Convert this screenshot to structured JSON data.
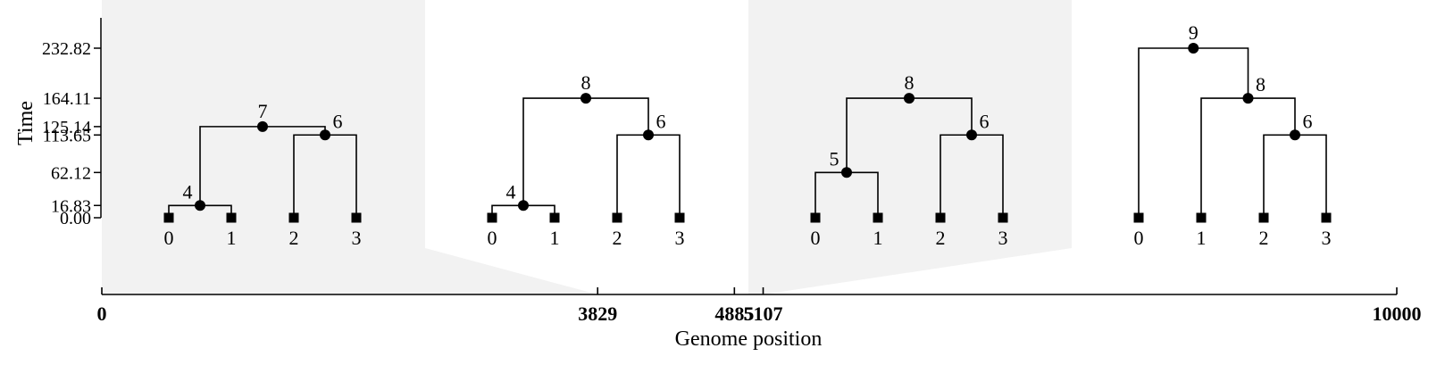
{
  "time_axis": {
    "title": "Time",
    "ticks": [
      {
        "value": 0.0,
        "label": "0.00"
      },
      {
        "value": 16.83,
        "label": "16.83"
      },
      {
        "value": 62.12,
        "label": "62.12"
      },
      {
        "value": 113.65,
        "label": "113.65"
      },
      {
        "value": 125.14,
        "label": "125.14"
      },
      {
        "value": 164.11,
        "label": "164.11"
      },
      {
        "value": 232.82,
        "label": "232.82"
      }
    ]
  },
  "genome_axis": {
    "title": "Genome position",
    "min": 0,
    "max": 10000,
    "breakpoints": [
      {
        "value": 0,
        "label": "0"
      },
      {
        "value": 3829,
        "label": "3829"
      },
      {
        "value": 4885,
        "label": "4885"
      },
      {
        "value": 5107,
        "label": "5107"
      },
      {
        "value": 10000,
        "label": "10000"
      }
    ]
  },
  "trees": [
    {
      "interval": [
        0,
        3829
      ],
      "shaded": true,
      "nodes": [
        {
          "id": "0",
          "time": 0.0,
          "sample": true,
          "label": "0"
        },
        {
          "id": "1",
          "time": 0.0,
          "sample": true,
          "label": "1"
        },
        {
          "id": "2",
          "time": 0.0,
          "sample": true,
          "label": "2"
        },
        {
          "id": "3",
          "time": 0.0,
          "sample": true,
          "label": "3"
        },
        {
          "id": "4",
          "time": 16.83,
          "children": [
            "0",
            "1"
          ],
          "label": "4"
        },
        {
          "id": "6",
          "time": 113.65,
          "children": [
            "2",
            "3"
          ],
          "label": "6"
        },
        {
          "id": "7",
          "time": 125.14,
          "children": [
            "4",
            "6"
          ],
          "label": "7"
        }
      ]
    },
    {
      "interval": [
        3829,
        4885
      ],
      "shaded": false,
      "nodes": [
        {
          "id": "0",
          "time": 0.0,
          "sample": true,
          "label": "0"
        },
        {
          "id": "1",
          "time": 0.0,
          "sample": true,
          "label": "1"
        },
        {
          "id": "2",
          "time": 0.0,
          "sample": true,
          "label": "2"
        },
        {
          "id": "3",
          "time": 0.0,
          "sample": true,
          "label": "3"
        },
        {
          "id": "4",
          "time": 16.83,
          "children": [
            "0",
            "1"
          ],
          "label": "4"
        },
        {
          "id": "6",
          "time": 113.65,
          "children": [
            "2",
            "3"
          ],
          "label": "6"
        },
        {
          "id": "8",
          "time": 164.11,
          "children": [
            "4",
            "6"
          ],
          "label": "8"
        }
      ]
    },
    {
      "interval": [
        4885,
        5107
      ],
      "shaded": true,
      "nodes": [
        {
          "id": "0",
          "time": 0.0,
          "sample": true,
          "label": "0"
        },
        {
          "id": "1",
          "time": 0.0,
          "sample": true,
          "label": "1"
        },
        {
          "id": "2",
          "time": 0.0,
          "sample": true,
          "label": "2"
        },
        {
          "id": "3",
          "time": 0.0,
          "sample": true,
          "label": "3"
        },
        {
          "id": "5",
          "time": 62.12,
          "children": [
            "0",
            "1"
          ],
          "label": "5"
        },
        {
          "id": "6",
          "time": 113.65,
          "children": [
            "2",
            "3"
          ],
          "label": "6"
        },
        {
          "id": "8",
          "time": 164.11,
          "children": [
            "5",
            "6"
          ],
          "label": "8"
        }
      ]
    },
    {
      "interval": [
        5107,
        10000
      ],
      "shaded": false,
      "nodes": [
        {
          "id": "0",
          "time": 0.0,
          "sample": true,
          "label": "0"
        },
        {
          "id": "1",
          "time": 0.0,
          "sample": true,
          "label": "1"
        },
        {
          "id": "2",
          "time": 0.0,
          "sample": true,
          "label": "2"
        },
        {
          "id": "3",
          "time": 0.0,
          "sample": true,
          "label": "3"
        },
        {
          "id": "6",
          "time": 113.65,
          "children": [
            "2",
            "3"
          ],
          "label": "6"
        },
        {
          "id": "8",
          "time": 164.11,
          "children": [
            "1",
            "6"
          ],
          "label": "8"
        },
        {
          "id": "9",
          "time": 232.82,
          "children": [
            "0",
            "8"
          ],
          "label": "9"
        }
      ]
    }
  ],
  "colors": {
    "shade": "#f2f2f2",
    "line": "#000000"
  }
}
